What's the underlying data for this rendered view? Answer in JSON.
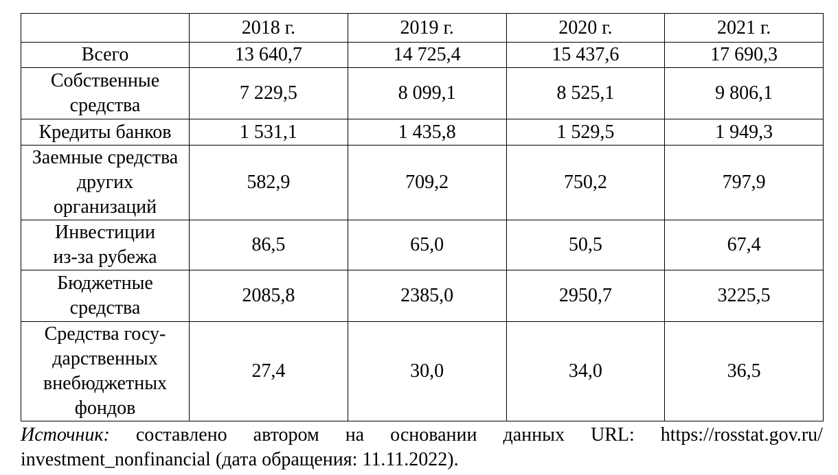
{
  "table": {
    "columns": [
      "",
      "2018 г.",
      "2019 г.",
      "2020 г.",
      "2021 г."
    ],
    "rows": [
      {
        "label": "Всего",
        "values": [
          "13 640,7",
          "14 725,4",
          "15 437,6",
          "17 690,3"
        ]
      },
      {
        "label": "Собственные\nсредства",
        "values": [
          "7 229,5",
          "8 099,1",
          "8 525,1",
          "9 806,1"
        ]
      },
      {
        "label": "Кредиты банков",
        "values": [
          "1 531,1",
          "1 435,8",
          "1 529,5",
          "1 949,3"
        ]
      },
      {
        "label": "Заемные средства\nдругих\nорганизаций",
        "values": [
          "582,9",
          "709,2",
          "750,2",
          "797,9"
        ]
      },
      {
        "label": "Инвестиции\nиз-за рубежа",
        "values": [
          "86,5",
          "65,0",
          "50,5",
          "67,4"
        ]
      },
      {
        "label": "Бюджетные\nсредства",
        "values": [
          "2085,8",
          "2385,0",
          "2950,7",
          "3225,5"
        ]
      },
      {
        "label": "Средства госу-\nдарственных\nвнебюджетных\nфондов",
        "values": [
          "27,4",
          "30,0",
          "34,0",
          "36,5"
        ]
      }
    ]
  },
  "source": {
    "label": "Источник:",
    "words": [
      "составлено",
      "автором",
      "на",
      "основании",
      "данных",
      "URL:",
      "https://rosstat.gov.ru/"
    ],
    "line2": "investment_nonfinancial (дата обращения: 11.11.2022)."
  }
}
